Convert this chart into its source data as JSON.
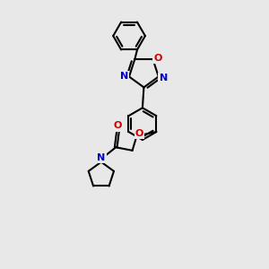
{
  "bg_color": "#e8e8e8",
  "bond_color": "#000000",
  "N_color": "#0000cc",
  "O_color": "#cc0000",
  "bond_width": 1.5,
  "figsize": [
    3.0,
    3.0
  ],
  "dpi": 100,
  "xlim": [
    -1.5,
    5.5
  ],
  "ylim": [
    -4.5,
    5.5
  ]
}
